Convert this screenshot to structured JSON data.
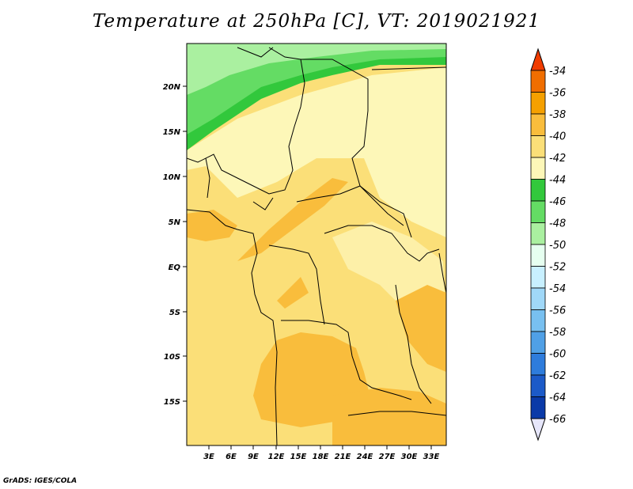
{
  "title": "Temperature at 250hPa [C], VT: 2019021921",
  "credit": "GrADS: IGES/COLA",
  "map": {
    "lat_labels": [
      "20N",
      "15N",
      "10N",
      "5N",
      "EQ",
      "5S",
      "10S",
      "15S"
    ],
    "lon_labels": [
      "3E",
      "6E",
      "9E",
      "12E",
      "15E",
      "18E",
      "21E",
      "24E",
      "27E",
      "30E",
      "33E"
    ]
  },
  "colorbar": {
    "labels": [
      "-34",
      "-36",
      "-38",
      "-40",
      "-42",
      "-44",
      "-46",
      "-48",
      "-50",
      "-52",
      "-54",
      "-56",
      "-58",
      "-60",
      "-62",
      "-64",
      "-66"
    ],
    "colors": [
      "#f03c00",
      "#f06e00",
      "#f5a000",
      "#f9bd3c",
      "#fbdf78",
      "#fdf7b8",
      "#32c83c",
      "#64dc64",
      "#aaf0a0",
      "#e6fff0",
      "#c8f0ff",
      "#a0d8f8",
      "#78c0f0",
      "#50a0e6",
      "#2e7cdc",
      "#1c5ac8",
      "#0a3aa8",
      "#0a1464",
      "#e6e6fa"
    ]
  }
}
